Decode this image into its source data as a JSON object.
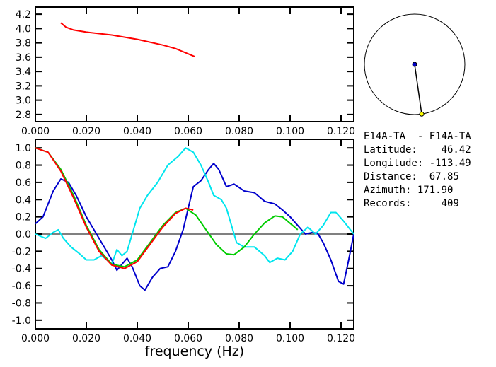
{
  "chart_data": [
    {
      "type": "line",
      "title": "",
      "xlabel": "",
      "ylabel": "",
      "xlim": [
        0,
        0.125
      ],
      "ylim": [
        2.7,
        4.3
      ],
      "xticks": [
        "0.000",
        "0.020",
        "0.040",
        "0.060",
        "0.080",
        "0.100",
        "0.120"
      ],
      "yticks": [
        "4.2",
        "4.0",
        "3.8",
        "3.6",
        "3.4",
        "3.2",
        "3.0",
        "2.8"
      ],
      "series": [
        {
          "name": "red",
          "color": "#ff0000",
          "x": [
            0.01,
            0.012,
            0.015,
            0.02,
            0.03,
            0.04,
            0.05,
            0.055,
            0.0625
          ],
          "y": [
            4.08,
            4.02,
            3.98,
            3.95,
            3.91,
            3.85,
            3.77,
            3.72,
            3.61
          ]
        }
      ]
    },
    {
      "type": "line",
      "title": "",
      "xlabel": "frequency (Hz)",
      "ylabel": "",
      "xlim": [
        0,
        0.125
      ],
      "ylim": [
        -1.1,
        1.1
      ],
      "xticks": [
        "0.000",
        "0.020",
        "0.040",
        "0.060",
        "0.080",
        "0.100",
        "0.120"
      ],
      "yticks": [
        "1.0",
        "0.8",
        "0.6",
        "0.4",
        "0.2",
        "0.0",
        "-0.2",
        "-0.4",
        "-0.6",
        "-0.8",
        "-1.0"
      ],
      "series": [
        {
          "name": "blue",
          "color": "#0000cc",
          "x": [
            0,
            0.003,
            0.007,
            0.01,
            0.013,
            0.016,
            0.02,
            0.024,
            0.027,
            0.03,
            0.032,
            0.034,
            0.036,
            0.038,
            0.041,
            0.043,
            0.046,
            0.049,
            0.052,
            0.055,
            0.058,
            0.06,
            0.062,
            0.065,
            0.068,
            0.07,
            0.072,
            0.075,
            0.078,
            0.082,
            0.086,
            0.09,
            0.094,
            0.097,
            0.1,
            0.103,
            0.106,
            0.109,
            0.111,
            0.113,
            0.116,
            0.119,
            0.121,
            0.123,
            0.125
          ],
          "y": [
            0.12,
            0.2,
            0.5,
            0.64,
            0.6,
            0.45,
            0.2,
            0.0,
            -0.15,
            -0.3,
            -0.42,
            -0.35,
            -0.28,
            -0.38,
            -0.6,
            -0.65,
            -0.5,
            -0.4,
            -0.38,
            -0.2,
            0.05,
            0.3,
            0.55,
            0.62,
            0.75,
            0.82,
            0.75,
            0.55,
            0.58,
            0.5,
            0.48,
            0.38,
            0.35,
            0.28,
            0.2,
            0.1,
            0.0,
            0.02,
            0.0,
            -0.1,
            -0.3,
            -0.55,
            -0.58,
            -0.3,
            0.0
          ]
        },
        {
          "name": "cyan",
          "color": "#00e5ee",
          "x": [
            0,
            0.004,
            0.007,
            0.009,
            0.011,
            0.014,
            0.017,
            0.02,
            0.023,
            0.026,
            0.028,
            0.03,
            0.032,
            0.034,
            0.036,
            0.038,
            0.041,
            0.044,
            0.048,
            0.052,
            0.056,
            0.059,
            0.062,
            0.065,
            0.068,
            0.07,
            0.073,
            0.075,
            0.077,
            0.079,
            0.082,
            0.086,
            0.09,
            0.092,
            0.095,
            0.098,
            0.101,
            0.104,
            0.107,
            0.11,
            0.113,
            0.116,
            0.118,
            0.121,
            0.125
          ],
          "y": [
            0.0,
            -0.05,
            0.02,
            0.05,
            -0.05,
            -0.15,
            -0.22,
            -0.3,
            -0.3,
            -0.25,
            -0.3,
            -0.35,
            -0.18,
            -0.25,
            -0.2,
            0.0,
            0.3,
            0.45,
            0.6,
            0.8,
            0.9,
            1.0,
            0.95,
            0.8,
            0.6,
            0.45,
            0.4,
            0.3,
            0.1,
            -0.1,
            -0.15,
            -0.15,
            -0.25,
            -0.33,
            -0.28,
            -0.3,
            -0.2,
            0.0,
            0.08,
            0.0,
            0.1,
            0.25,
            0.25,
            0.15,
            0.0
          ]
        },
        {
          "name": "green",
          "color": "#00cc00",
          "x": [
            0,
            0.005,
            0.01,
            0.015,
            0.02,
            0.025,
            0.03,
            0.035,
            0.04,
            0.045,
            0.05,
            0.055,
            0.059,
            0.063,
            0.067,
            0.071,
            0.075,
            0.078,
            0.082,
            0.086,
            0.09,
            0.094,
            0.097,
            0.101,
            0.103
          ],
          "y": [
            1.0,
            0.95,
            0.75,
            0.45,
            0.1,
            -0.18,
            -0.35,
            -0.38,
            -0.3,
            -0.1,
            0.1,
            0.25,
            0.3,
            0.22,
            0.05,
            -0.12,
            -0.23,
            -0.24,
            -0.15,
            0.0,
            0.13,
            0.21,
            0.2,
            0.1,
            0.05
          ]
        },
        {
          "name": "red",
          "color": "#ff0000",
          "x": [
            0,
            0.005,
            0.01,
            0.015,
            0.02,
            0.025,
            0.03,
            0.035,
            0.04,
            0.045,
            0.05,
            0.055,
            0.059,
            0.062
          ],
          "y": [
            1.0,
            0.95,
            0.73,
            0.42,
            0.08,
            -0.2,
            -0.36,
            -0.4,
            -0.32,
            -0.12,
            0.08,
            0.24,
            0.3,
            0.28
          ]
        }
      ]
    }
  ],
  "azimuth_deg": 171.9,
  "info": {
    "pair": "E14A-TA  - F14A-TA",
    "lat_label": "Latitude:",
    "lat": "46.42",
    "lon_label": "Longitude:",
    "lon": "-113.49",
    "dist_label": "Distance:",
    "dist": "67.85",
    "az_label": "Azimuth:",
    "az": "171.90",
    "rec_label": "Records:",
    "rec": "409"
  }
}
